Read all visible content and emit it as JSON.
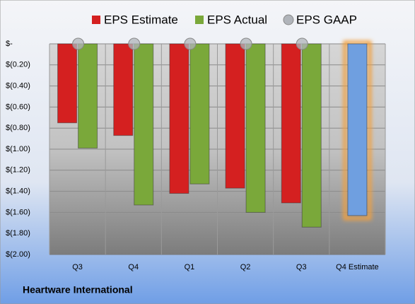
{
  "chart_data": {
    "type": "bar",
    "footer": "Heartware International",
    "categories": [
      "Q3",
      "Q4",
      "Q1",
      "Q2",
      "Q3",
      "Q4 Estimate"
    ],
    "series": [
      {
        "name": "EPS Estimate",
        "color": "#d42020",
        "colors": [
          "#d42020",
          "#d42020",
          "#d42020",
          "#d42020",
          "#d42020",
          "#6f9fe0"
        ],
        "values": [
          -0.75,
          -0.87,
          -1.42,
          -1.37,
          -1.51,
          -1.63
        ]
      },
      {
        "name": "EPS Actual",
        "color": "#7aa83a",
        "values": [
          -0.99,
          -1.53,
          -1.33,
          -1.6,
          -1.74,
          null
        ]
      },
      {
        "name": "EPS GAAP",
        "color": "#b0b4ba",
        "values": [
          0,
          0,
          0,
          0,
          0,
          null
        ]
      }
    ],
    "ylim": [
      -2,
      0
    ],
    "yticks": [
      {
        "value": 0,
        "label": "$-"
      },
      {
        "value": -0.2,
        "label": "$(0.20)"
      },
      {
        "value": -0.4,
        "label": "$(0.40)"
      },
      {
        "value": -0.6,
        "label": "$(0.60)"
      },
      {
        "value": -0.8,
        "label": "$(0.80)"
      },
      {
        "value": -1.0,
        "label": "$(1.00)"
      },
      {
        "value": -1.2,
        "label": "$(1.20)"
      },
      {
        "value": -1.4,
        "label": "$(1.40)"
      },
      {
        "value": -1.6,
        "label": "$(1.60)"
      },
      {
        "value": -1.8,
        "label": "$(1.80)"
      },
      {
        "value": -2.0,
        "label": "$(2.00)"
      }
    ],
    "grid": true
  }
}
